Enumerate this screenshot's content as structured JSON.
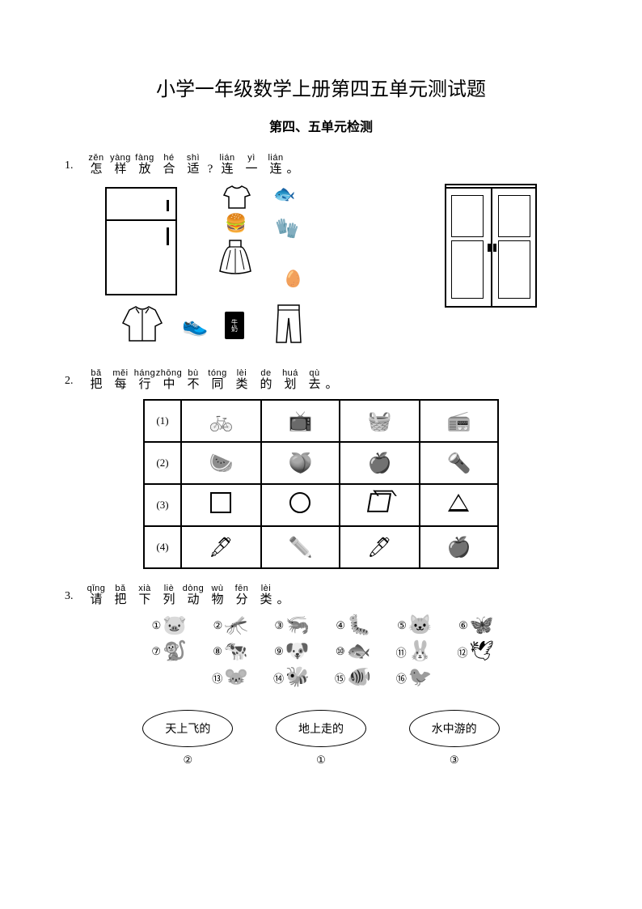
{
  "title": "小学一年级数学上册第四五单元测试题",
  "subtitle": "第四、五单元检测",
  "questions": {
    "q1": {
      "num": "1.",
      "chars": [
        {
          "p": "zěn",
          "h": "怎",
          "w": "w16"
        },
        {
          "p": "yàng",
          "h": "样",
          "w": "w16"
        },
        {
          "p": "fàng",
          "h": "放",
          "w": "w16"
        },
        {
          "p": "hé",
          "h": "合",
          "w": "w16"
        },
        {
          "p": "shì",
          "h": "适",
          "w": "w16"
        },
        {
          "p": "",
          "h": "?",
          "w": "wpunct"
        },
        {
          "p": "lián",
          "h": "连",
          "w": "w16"
        },
        {
          "p": "yì",
          "h": "一",
          "w": "w16"
        },
        {
          "p": "lián",
          "h": "连",
          "w": "w16"
        },
        {
          "p": "",
          "h": "。",
          "w": "wpunct"
        }
      ]
    },
    "q2": {
      "num": "2.",
      "chars": [
        {
          "p": "bǎ",
          "h": "把",
          "w": "w16"
        },
        {
          "p": "měi",
          "h": "每",
          "w": "w16"
        },
        {
          "p": "háng",
          "h": "行",
          "w": "w16"
        },
        {
          "p": "zhōng",
          "h": "中",
          "w": "w16"
        },
        {
          "p": "bù",
          "h": "不",
          "w": "w16"
        },
        {
          "p": "tóng",
          "h": "同",
          "w": "w16"
        },
        {
          "p": "lèi",
          "h": "类",
          "w": "w16"
        },
        {
          "p": "de",
          "h": "的",
          "w": "w16"
        },
        {
          "p": "huá",
          "h": "划",
          "w": "w16"
        },
        {
          "p": "qù",
          "h": "去",
          "w": "w16"
        },
        {
          "p": "",
          "h": "。",
          "w": "wpunct"
        }
      ],
      "rows": [
        {
          "lbl": "(1)",
          "cells": [
            "🚲",
            "📺",
            "🧺",
            "📻"
          ]
        },
        {
          "lbl": "(2)",
          "cells": [
            "🍉",
            "🍑",
            "🍎",
            "🔦"
          ]
        },
        {
          "lbl": "(3)",
          "cells": [
            "SQ",
            "CIR",
            "CUBE",
            "TRI"
          ]
        },
        {
          "lbl": "(4)",
          "cells": [
            "🖋",
            "✏️",
            "🖊",
            "🍎"
          ]
        }
      ]
    },
    "q3": {
      "num": "3.",
      "chars": [
        {
          "p": "qǐng",
          "h": "请",
          "w": "w16"
        },
        {
          "p": "bǎ",
          "h": "把",
          "w": "w16"
        },
        {
          "p": "xià",
          "h": "下",
          "w": "w16"
        },
        {
          "p": "liè",
          "h": "列",
          "w": "w16"
        },
        {
          "p": "dòng",
          "h": "动",
          "w": "w16"
        },
        {
          "p": "wù",
          "h": "物",
          "w": "w16"
        },
        {
          "p": "fēn",
          "h": "分",
          "w": "w16"
        },
        {
          "p": "lèi",
          "h": "类",
          "w": "w16"
        },
        {
          "p": "",
          "h": "。",
          "w": "wpunct"
        }
      ],
      "row1": [
        {
          "n": "①",
          "e": "🐷"
        },
        {
          "n": "②",
          "e": "🦟"
        },
        {
          "n": "③",
          "e": "🦐"
        },
        {
          "n": "④",
          "e": "🐛"
        },
        {
          "n": "⑤",
          "e": "🐱"
        },
        {
          "n": "⑥",
          "e": "🦋"
        }
      ],
      "row2": [
        {
          "n": "⑦",
          "e": "🐒"
        },
        {
          "n": "⑧",
          "e": "🐄"
        },
        {
          "n": "⑨",
          "e": "🐶"
        },
        {
          "n": "⑩",
          "e": "🐟"
        },
        {
          "n": "⑪",
          "e": "🐰"
        },
        {
          "n": "⑫",
          "e": "🕊"
        }
      ],
      "row3": [
        {
          "n": "⑬",
          "e": "🐭"
        },
        {
          "n": "⑭",
          "e": "🐝"
        },
        {
          "n": "⑮",
          "e": "🐠"
        },
        {
          "n": "⑯",
          "e": "🐦"
        }
      ],
      "ovals": [
        {
          "label": "天上飞的",
          "ans": "②"
        },
        {
          "label": "地上走的",
          "ans": "①"
        },
        {
          "label": "水中游的",
          "ans": "③"
        }
      ]
    }
  },
  "q1items": {
    "fish": "🐟",
    "burger": "🍔",
    "mittens": "🧤",
    "eggs": "🥚",
    "shoes": "👟",
    "milk": "🥛",
    "milklabel": "牛奶"
  }
}
